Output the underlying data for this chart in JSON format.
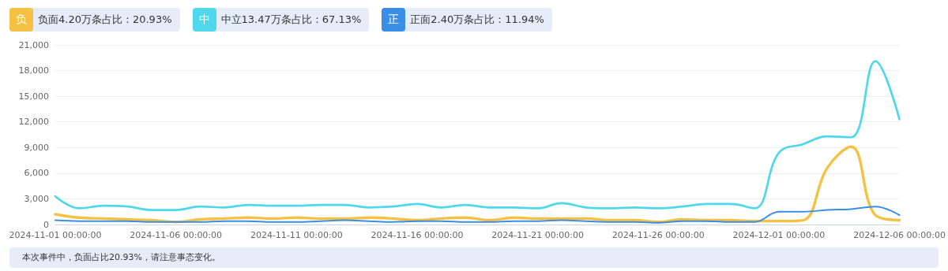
{
  "chart_data": {
    "type": "line",
    "x": [
      "2024-11-01",
      "2024-11-02",
      "2024-11-03",
      "2024-11-04",
      "2024-11-05",
      "2024-11-06",
      "2024-11-07",
      "2024-11-08",
      "2024-11-09",
      "2024-11-10",
      "2024-11-11",
      "2024-11-12",
      "2024-11-13",
      "2024-11-14",
      "2024-11-15",
      "2024-11-16",
      "2024-11-17",
      "2024-11-18",
      "2024-11-19",
      "2024-11-20",
      "2024-11-21",
      "2024-11-22",
      "2024-11-23",
      "2024-11-24",
      "2024-11-25",
      "2024-11-26",
      "2024-11-27",
      "2024-11-28",
      "2024-11-29",
      "2024-11-30",
      "2024-12-01",
      "2024-12-02",
      "2024-12-03",
      "2024-12-04",
      "2024-12-05",
      "2024-12-06"
    ],
    "series": [
      {
        "name": "负面4.20万条占比：20.93%",
        "color": "#f5c143",
        "values": [
          1200,
          800,
          700,
          600,
          500,
          300,
          600,
          700,
          800,
          700,
          800,
          700,
          700,
          800,
          700,
          500,
          700,
          800,
          500,
          800,
          700,
          700,
          700,
          500,
          500,
          300,
          600,
          500,
          500,
          400,
          400,
          500,
          6600,
          9100,
          1100,
          500
        ]
      },
      {
        "name": "中立13.47万条占比：67.13%",
        "color": "#4fd8ec",
        "values": [
          3300,
          1900,
          2200,
          2100,
          1700,
          1700,
          2100,
          2000,
          2300,
          2200,
          2200,
          2300,
          2300,
          2000,
          2100,
          2400,
          2000,
          2300,
          2000,
          2000,
          1900,
          2500,
          2000,
          1900,
          2000,
          1900,
          2100,
          2400,
          2400,
          1900,
          8400,
          9400,
          10300,
          10200,
          19100,
          12300
        ]
      },
      {
        "name": "正面2.40万条占比：11.94%",
        "color": "#3a8ee6",
        "values": [
          500,
          400,
          400,
          400,
          300,
          300,
          300,
          400,
          400,
          300,
          300,
          400,
          500,
          400,
          300,
          400,
          400,
          300,
          300,
          400,
          400,
          500,
          400,
          300,
          300,
          200,
          400,
          400,
          300,
          300,
          1500,
          1500,
          1700,
          1800,
          2100,
          1100
        ]
      }
    ],
    "xlim": [
      "2024-11-01",
      "2024-12-06"
    ],
    "xticks": [
      {
        "value": "2024-11-01",
        "label": "2024-11-01 00:00:00"
      },
      {
        "value": "2024-11-06",
        "label": "2024-11-06 00:00:00"
      },
      {
        "value": "2024-11-11",
        "label": "2024-11-11 00:00:00"
      },
      {
        "value": "2024-11-16",
        "label": "2024-11-16 00:00:00"
      },
      {
        "value": "2024-11-21",
        "label": "2024-11-21 00:00:00"
      },
      {
        "value": "2024-11-26",
        "label": "2024-11-26 00:00:00"
      },
      {
        "value": "2024-12-01",
        "label": "2024-12-01 00:00:00"
      },
      {
        "value": "2024-12-06",
        "label": "2024-12-06 00:00:00"
      }
    ],
    "ylim": [
      0,
      21000
    ],
    "yticks": [
      0,
      {
        "value": 3000,
        "label": "3,000"
      },
      {
        "value": 6000,
        "label": "6,000"
      },
      {
        "value": 9000,
        "label": "9,000"
      },
      {
        "value": 12000,
        "label": "12,000"
      },
      {
        "value": 15000,
        "label": "15,000"
      },
      {
        "value": 18000,
        "label": "18,000"
      },
      {
        "value": 21000,
        "label": "21,000"
      }
    ],
    "grid": "y",
    "legend": "top left",
    "marker": "none",
    "line_style": "solid",
    "annotations": [
      "负",
      "中",
      "正",
      "本次事件中，负面占比20.93%，请注意事态变化。"
    ]
  }
}
